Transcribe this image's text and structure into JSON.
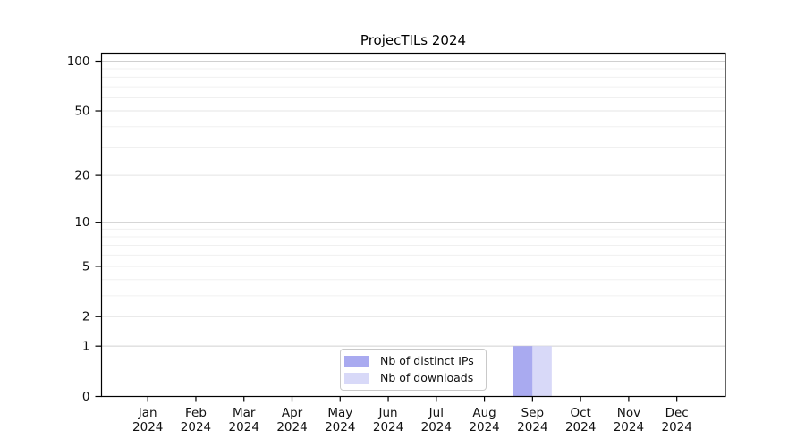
{
  "chart_data": {
    "type": "bar",
    "title": "ProjecTILs 2024",
    "categories": [
      "Jan",
      "Feb",
      "Mar",
      "Apr",
      "May",
      "Jun",
      "Jul",
      "Aug",
      "Sep",
      "Oct",
      "Nov",
      "Dec"
    ],
    "x_year": "2024",
    "series": [
      {
        "name": "Nb of distinct IPs",
        "color": "#a9aaf0",
        "values": [
          0,
          0,
          0,
          0,
          0,
          0,
          0,
          0,
          1,
          0,
          0,
          0
        ]
      },
      {
        "name": "Nb of downloads",
        "color": "#d8d9f8",
        "values": [
          0,
          0,
          0,
          0,
          0,
          0,
          0,
          0,
          1,
          0,
          0,
          0
        ]
      }
    ],
    "y_scale": "log1p",
    "y_ticks": [
      0,
      1,
      2,
      5,
      10,
      20,
      50,
      100
    ],
    "y_minor_ticks": [
      3,
      4,
      6,
      7,
      8,
      9,
      30,
      40,
      60,
      70,
      80,
      90
    ],
    "ylim": [
      0,
      112
    ],
    "grid": true,
    "legend_position": "lower-center",
    "colors": {
      "grid_major": "#d0d0d0",
      "grid_mid": "#e4e4e4",
      "grid_minor": "#f0f0f0",
      "axis": "#000000",
      "text": "#111111",
      "background": "#ffffff"
    }
  }
}
